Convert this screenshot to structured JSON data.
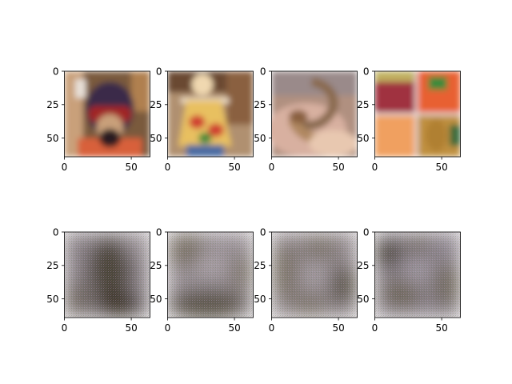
{
  "figure": {
    "background": "#ffffff",
    "tick_color": "#000000"
  },
  "chart_data": [
    {
      "type": "image",
      "row": 0,
      "col": 0,
      "content": "person wearing helmet and goggles, orange jacket",
      "image_size": [
        64,
        64
      ],
      "xticks": [
        0,
        50
      ],
      "yticks": [
        0,
        25,
        50
      ],
      "xlim": [
        0,
        64
      ],
      "ylim": [
        64,
        0
      ],
      "palette": [
        "#7a5a3c",
        "#c9a07a",
        "#3a2a4a",
        "#d8603a",
        "#2a1a20"
      ]
    },
    {
      "type": "image",
      "row": 0,
      "col": 1,
      "content": "child in colorful floral apron, bookshelves behind",
      "image_size": [
        64,
        64
      ],
      "xticks": [
        0,
        50
      ],
      "yticks": [
        0,
        25,
        50
      ],
      "xlim": [
        0,
        64
      ],
      "ylim": [
        64,
        0
      ],
      "palette": [
        "#6a4a30",
        "#e8c060",
        "#d04030",
        "#4a6aa0",
        "#f0e0c8"
      ]
    },
    {
      "type": "image",
      "row": 0,
      "col": 2,
      "content": "spotted snake held in a hand",
      "image_size": [
        64,
        64
      ],
      "xticks": [
        0,
        50
      ],
      "yticks": [
        0,
        25,
        50
      ],
      "xlim": [
        0,
        64
      ],
      "ylim": [
        64,
        0
      ],
      "palette": [
        "#b09080",
        "#d8b0a0",
        "#8a6a50",
        "#e8c8b0",
        "#a07050"
      ]
    },
    {
      "type": "image",
      "row": 0,
      "col": 3,
      "content": "grid of fruits and peppers",
      "image_size": [
        64,
        64
      ],
      "xticks": [
        0,
        50
      ],
      "yticks": [
        0,
        25,
        50
      ],
      "xlim": [
        0,
        64
      ],
      "ylim": [
        64,
        0
      ],
      "palette": [
        "#a03040",
        "#3a8a3a",
        "#e86030",
        "#f0a060",
        "#c09040"
      ]
    },
    {
      "type": "image",
      "row": 1,
      "col": 0,
      "content": "blurry reconstruction, grey-brown",
      "image_size": [
        64,
        64
      ],
      "xticks": [
        0,
        50
      ],
      "yticks": [
        0,
        25,
        50
      ],
      "xlim": [
        0,
        64
      ],
      "ylim": [
        64,
        0
      ],
      "palette": [
        "#8a8288",
        "#4a4238",
        "#6a6258",
        "#9a9298",
        "#3a3228"
      ]
    },
    {
      "type": "image",
      "row": 1,
      "col": 1,
      "content": "blurry reconstruction, grey-brown",
      "image_size": [
        64,
        64
      ],
      "xticks": [
        0,
        50
      ],
      "yticks": [
        0,
        25,
        50
      ],
      "xlim": [
        0,
        64
      ],
      "ylim": [
        64,
        0
      ],
      "palette": [
        "#9a9298",
        "#5a5248",
        "#7a7268",
        "#aaa2a8",
        "#4a4238"
      ]
    },
    {
      "type": "image",
      "row": 1,
      "col": 2,
      "content": "blurry reconstruction, grey-brown",
      "image_size": [
        64,
        64
      ],
      "xticks": [
        0,
        50
      ],
      "yticks": [
        0,
        25,
        50
      ],
      "xlim": [
        0,
        64
      ],
      "ylim": [
        64,
        0
      ],
      "palette": [
        "#948c92",
        "#5a5248",
        "#7a7268",
        "#a49ca2",
        "#4a4238"
      ]
    },
    {
      "type": "image",
      "row": 1,
      "col": 3,
      "content": "blurry reconstruction, grey-brown",
      "image_size": [
        64,
        64
      ],
      "xticks": [
        0,
        50
      ],
      "yticks": [
        0,
        25,
        50
      ],
      "xlim": [
        0,
        64
      ],
      "ylim": [
        64,
        0
      ],
      "palette": [
        "#8e8690",
        "#4a4238",
        "#6e665c",
        "#9e96a0",
        "#3a3228"
      ]
    }
  ]
}
